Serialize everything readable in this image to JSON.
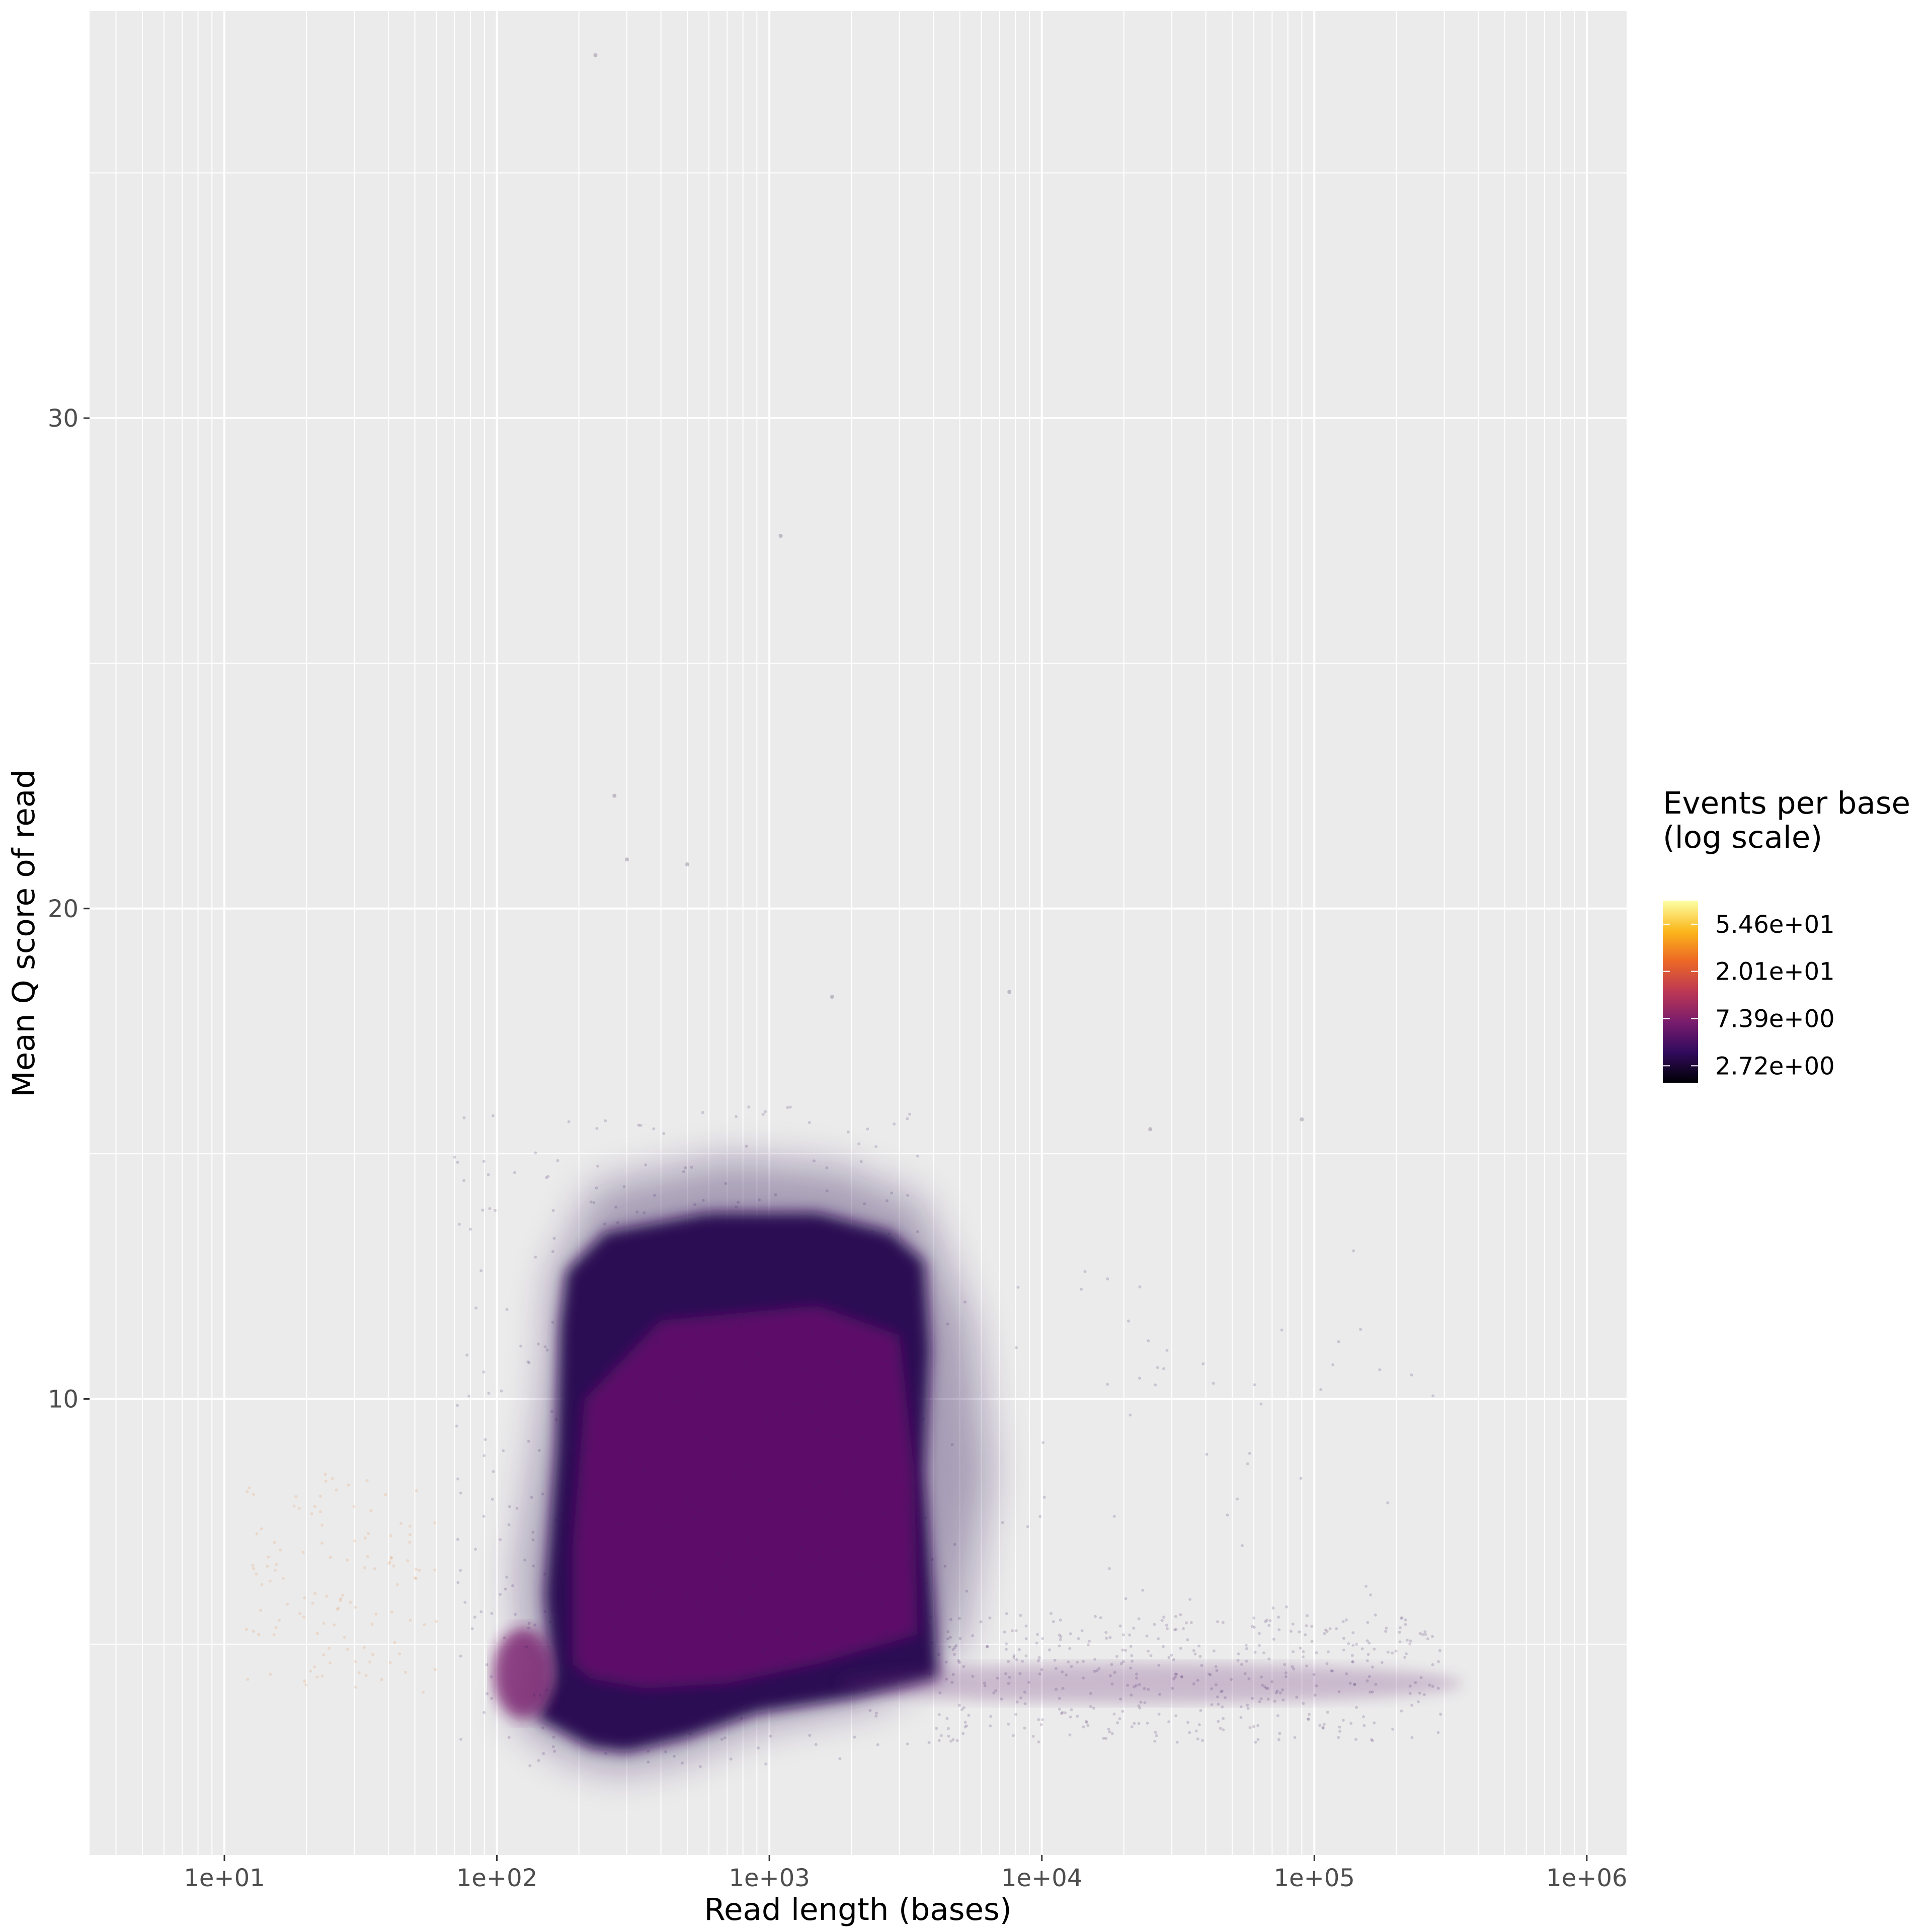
{
  "chart_data": {
    "type": "scatter",
    "title": "",
    "xlabel": "Read length (bases)",
    "ylabel": "Mean Q score of read",
    "x_scale": "log10",
    "xlim": [
      3.2,
      1400000
    ],
    "ylim": [
      0.7,
      38.3
    ],
    "x_ticks": [
      10,
      100,
      1000,
      10000,
      100000,
      1000000
    ],
    "x_tick_labels": [
      "1e+01",
      "1e+02",
      "1e+03",
      "1e+04",
      "1e+05",
      "1e+06"
    ],
    "y_ticks": [
      10,
      20,
      30
    ],
    "y_tick_labels": [
      "10",
      "20",
      "30"
    ],
    "grid": true,
    "panel_background": "#ebebeb",
    "grid_color": "#ffffff",
    "legend": {
      "title_lines": [
        "Events per base",
        "(log scale)"
      ],
      "position": "right",
      "labels": [
        "5.46e+01",
        "2.01e+01",
        "7.39e+00",
        "2.72e+00"
      ],
      "label_values": [
        54.6,
        20.1,
        7.39,
        2.72
      ],
      "range": [
        1.9,
        90
      ],
      "colormap": [
        "#000004",
        "#320a5e",
        "#781c6d",
        "#bc3754",
        "#ed6925",
        "#fbb61a",
        "#fcffa4"
      ]
    },
    "density_region": {
      "description_points": [
        {
          "x": 170,
          "y": 13.0
        },
        {
          "x": 3500,
          "y": 13.5
        },
        {
          "x": 4000,
          "y": 4.5
        },
        {
          "x": 300,
          "y": 3.3
        },
        {
          "x": 110,
          "y": 4.5
        }
      ],
      "core_color": "#5c1068",
      "edge_color": "#2b0b55",
      "tail": {
        "x_range": [
          4000,
          300000
        ],
        "y_center": 4.2
      }
    },
    "outliers": [
      {
        "x": 230,
        "y": 37.4
      },
      {
        "x": 1100,
        "y": 27.6
      },
      {
        "x": 270,
        "y": 22.3
      },
      {
        "x": 300,
        "y": 21.0
      },
      {
        "x": 500,
        "y": 20.9
      },
      {
        "x": 7600,
        "y": 18.3
      },
      {
        "x": 1700,
        "y": 18.2
      },
      {
        "x": 90000,
        "y": 15.7
      },
      {
        "x": 25000,
        "y": 15.5
      }
    ],
    "series": [
      {
        "points": []
      }
    ]
  }
}
